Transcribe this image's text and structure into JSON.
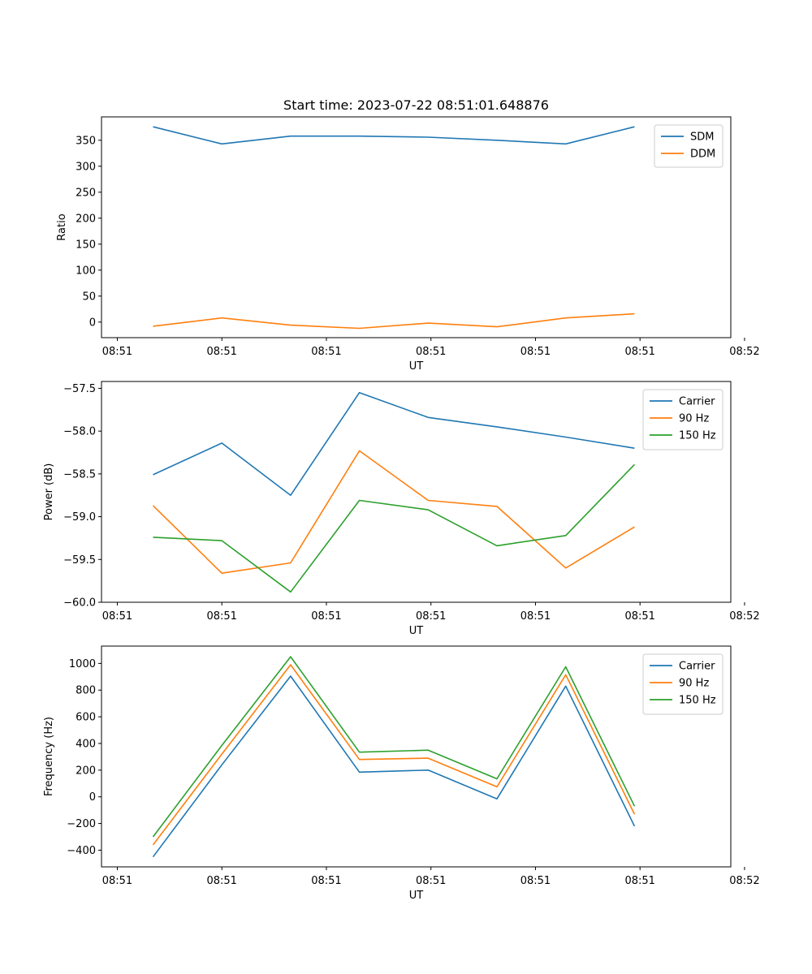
{
  "chart_data": [
    {
      "type": "line",
      "title": "Start time: 2023-07-22 08:51:01.648876",
      "xlabel": "UT",
      "ylabel": "Ratio",
      "x": [
        1,
        2,
        3,
        4,
        5,
        6,
        7,
        8
      ],
      "xlim": [
        0.25,
        9.4
      ],
      "xticks": [
        0.48,
        2.0,
        3.52,
        5.04,
        6.56,
        8.08,
        9.6
      ],
      "xtick_labels": [
        "08:51",
        "08:51",
        "08:51",
        "08:51",
        "08:51",
        "08:51",
        "08:52"
      ],
      "ylim": [
        -30,
        395
      ],
      "yticks": [
        0,
        50,
        100,
        150,
        200,
        250,
        300,
        350
      ],
      "ytick_labels": [
        "0",
        "50",
        "100",
        "150",
        "200",
        "250",
        "300",
        "350"
      ],
      "legend": "top-right",
      "series": [
        {
          "name": "SDM",
          "color": "#1f77b4",
          "values": [
            376,
            343,
            358,
            358,
            356,
            350,
            343,
            376
          ]
        },
        {
          "name": "DDM",
          "color": "#ff7f0e",
          "values": [
            -8,
            8,
            -6,
            -12,
            -2,
            -9,
            8,
            16
          ]
        }
      ]
    },
    {
      "type": "line",
      "title": "",
      "xlabel": "UT",
      "ylabel": "Power (dB)",
      "x": [
        1,
        2,
        3,
        4,
        5,
        6,
        7,
        8
      ],
      "xlim": [
        0.25,
        9.4
      ],
      "xticks": [
        0.48,
        2.0,
        3.52,
        5.04,
        6.56,
        8.08,
        9.6
      ],
      "xtick_labels": [
        "08:51",
        "08:51",
        "08:51",
        "08:51",
        "08:51",
        "08:51",
        "08:52"
      ],
      "ylim": [
        -60.0,
        -57.42
      ],
      "yticks": [
        -60.0,
        -59.5,
        -59.0,
        -58.5,
        -58.0,
        -57.5
      ],
      "ytick_labels": [
        "−60.0",
        "−59.5",
        "−59.0",
        "−58.5",
        "−58.0",
        "−57.5"
      ],
      "legend": "top-right",
      "series": [
        {
          "name": "Carrier",
          "color": "#1f77b4",
          "values": [
            -58.51,
            -58.14,
            -58.75,
            -57.55,
            -57.84,
            -57.95,
            -58.07,
            -58.2
          ]
        },
        {
          "name": "90 Hz",
          "color": "#ff7f0e",
          "values": [
            -58.87,
            -59.66,
            -59.54,
            -58.23,
            -58.81,
            -58.88,
            -59.6,
            -59.12
          ]
        },
        {
          "name": "150 Hz",
          "color": "#2ca02c",
          "values": [
            -59.24,
            -59.28,
            -59.88,
            -58.81,
            -58.92,
            -59.34,
            -59.22,
            -58.39
          ]
        }
      ]
    },
    {
      "type": "line",
      "title": "",
      "xlabel": "UT",
      "ylabel": "Frequency (Hz)",
      "x": [
        1,
        2,
        3,
        4,
        5,
        6,
        7,
        8
      ],
      "xlim": [
        0.25,
        9.4
      ],
      "xticks": [
        0.48,
        2.0,
        3.52,
        5.04,
        6.56,
        8.08,
        9.6
      ],
      "xtick_labels": [
        "08:51",
        "08:51",
        "08:51",
        "08:51",
        "08:51",
        "08:51",
        "08:52"
      ],
      "ylim": [
        -525,
        1130
      ],
      "yticks": [
        -400,
        -200,
        0,
        200,
        400,
        600,
        800,
        1000
      ],
      "ytick_labels": [
        "−400",
        "−200",
        "0",
        "200",
        "400",
        "600",
        "800",
        "1000"
      ],
      "legend": "top-right",
      "series": [
        {
          "name": "Carrier",
          "color": "#1f77b4",
          "values": [
            -450,
            240,
            905,
            185,
            200,
            -15,
            830,
            -220
          ]
        },
        {
          "name": "90 Hz",
          "color": "#ff7f0e",
          "values": [
            -360,
            320,
            990,
            280,
            290,
            75,
            915,
            -130
          ]
        },
        {
          "name": "150 Hz",
          "color": "#2ca02c",
          "values": [
            -300,
            385,
            1050,
            335,
            350,
            135,
            975,
            -70
          ]
        }
      ]
    }
  ]
}
